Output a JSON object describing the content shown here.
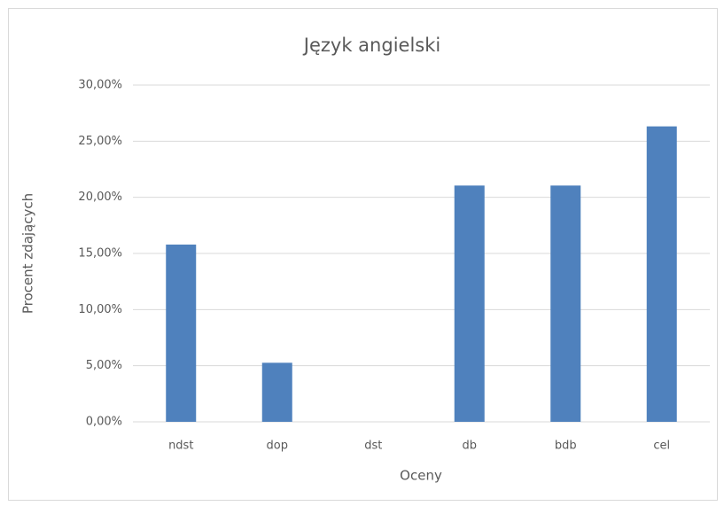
{
  "chart_data": {
    "type": "bar",
    "title": "Język angielski",
    "x_label": "Oceny",
    "y_label": "Procent zdających",
    "categories": [
      "ndst",
      "dop",
      "dst",
      "db",
      "bdb",
      "cel"
    ],
    "values": [
      15.79,
      5.26,
      0,
      21.05,
      21.05,
      26.32
    ],
    "color": "#4f81bd",
    "ylim": [
      0,
      30
    ],
    "yticks": [
      {
        "value": 0,
        "label": "0,00%"
      },
      {
        "value": 5,
        "label": "5,00%"
      },
      {
        "value": 10,
        "label": "10,00%"
      },
      {
        "value": 15,
        "label": "15,00%"
      },
      {
        "value": 20,
        "label": "20,00%"
      },
      {
        "value": 25,
        "label": "25,00%"
      },
      {
        "value": 30,
        "label": "30,00%"
      }
    ],
    "grid": true
  }
}
